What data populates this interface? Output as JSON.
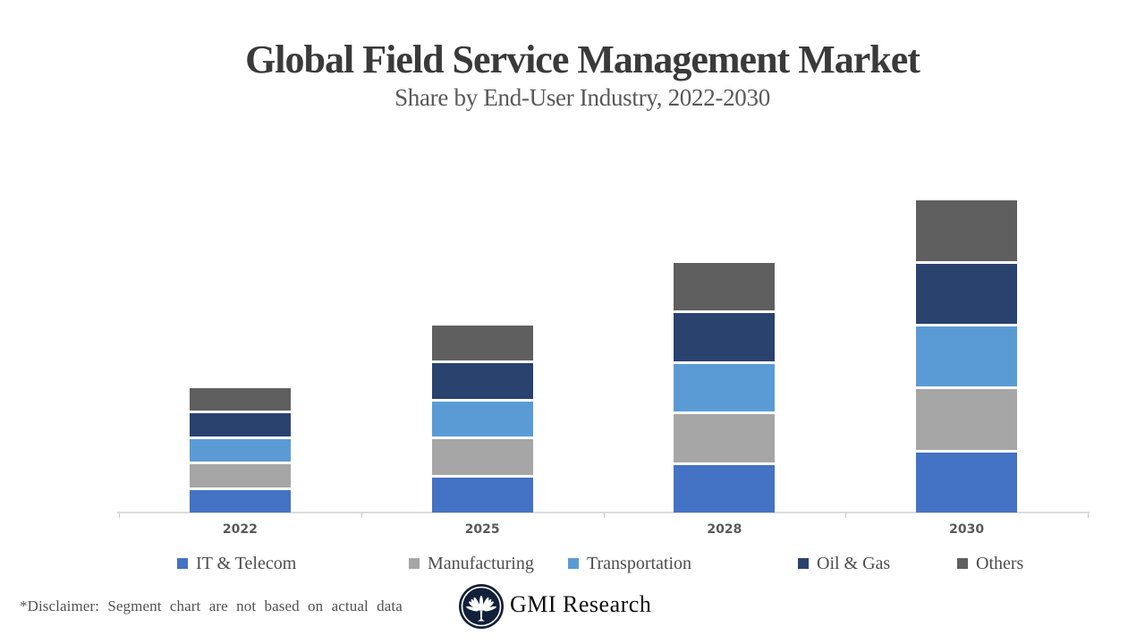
{
  "header": {
    "title": "Global Field Service Management Market",
    "subtitle": "Share by End-User Industry, 2022-2030"
  },
  "chart_data": {
    "type": "bar",
    "stacked": true,
    "title": "Global Field Service Management Market",
    "subtitle": "Share by End-User Industry, 2022-2030",
    "categories": [
      "2022",
      "2025",
      "2028",
      "2030"
    ],
    "series": [
      {
        "name": "IT & Telecom",
        "color": "#4472C4",
        "values": [
          1,
          1.5,
          2,
          2.5
        ]
      },
      {
        "name": "Manufacturing",
        "color": "#A6A6A6",
        "values": [
          1,
          1.5,
          2,
          2.5
        ]
      },
      {
        "name": "Transportation",
        "color": "#5B9BD5",
        "values": [
          1,
          1.5,
          2,
          2.5
        ]
      },
      {
        "name": "Oil & Gas",
        "color": "#29426E",
        "values": [
          1,
          1.5,
          2,
          2.5
        ]
      },
      {
        "name": "Others",
        "color": "#5F5F5F",
        "values": [
          1,
          1.5,
          2,
          2.5
        ]
      }
    ],
    "stack_order_bottom_to_top": [
      "IT & Telecom",
      "Manufacturing",
      "Transportation",
      "Oil & Gas",
      "Others"
    ],
    "ylim": [
      0,
      12.5
    ],
    "value_units": "relative share units (chart not based on actual data)",
    "grid": false,
    "y_axis_visible": false,
    "legend_position": "bottom",
    "axis_line_color": "#DBDBDB",
    "label_color": "#595959"
  },
  "footer": {
    "disclaimer": "*Disclaimer:  Segment chart are not based on actual data",
    "brand": "GMI Research",
    "logo_icon": "palmetto-fan-in-dark-circle",
    "logo_bg_color": "#13203A"
  }
}
